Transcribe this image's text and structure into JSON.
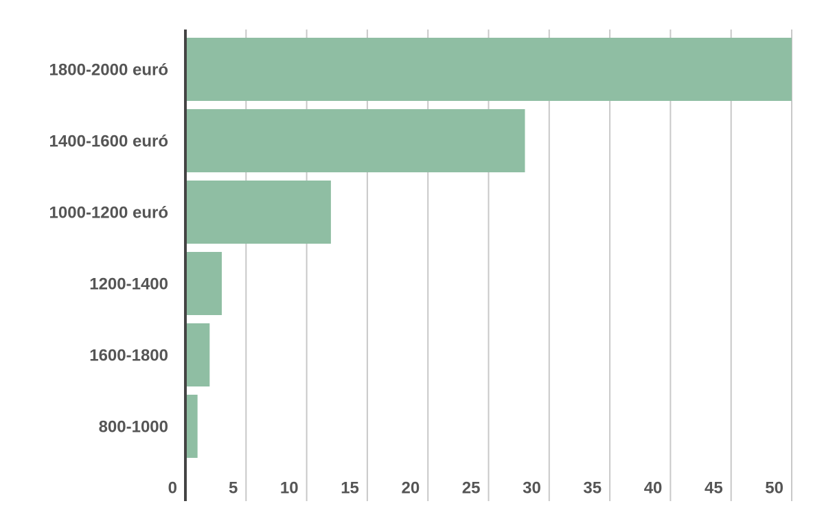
{
  "chart_data": {
    "type": "bar",
    "orientation": "horizontal",
    "categories": [
      "1800-2000 euró",
      "1400-1600 euró",
      "1000-1200 euró",
      "1200-1400",
      "1600-1800",
      "800-1000"
    ],
    "values": [
      50,
      28,
      12,
      3,
      2,
      1
    ],
    "color": "#8fbea3",
    "xlim": [
      0,
      50
    ],
    "xticks": [
      0,
      5,
      10,
      15,
      20,
      25,
      30,
      35,
      40,
      45,
      50
    ],
    "grid": true
  }
}
